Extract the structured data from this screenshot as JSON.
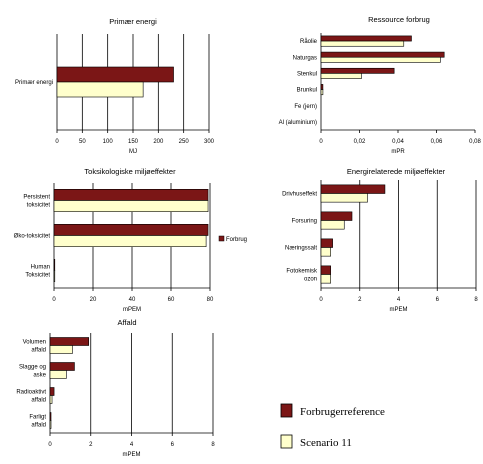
{
  "colors": {
    "ref": "#7B1616",
    "scen": "#FFFFCC",
    "edge": "#000000"
  },
  "legend": {
    "ref_label": "Forbrugerreference",
    "scen_label": "Scenario 11"
  },
  "chart_data": [
    {
      "type": "bar",
      "orientation": "horizontal",
      "title": "Primær energi",
      "categories": [
        "Primær energi"
      ],
      "series": [
        {
          "name": "Forbrugerreference",
          "values": [
            230
          ]
        },
        {
          "name": "Scenario 11",
          "values": [
            170
          ]
        }
      ],
      "xlim": [
        0,
        300
      ],
      "ticks": [
        "0",
        "50",
        "100",
        "150",
        "200",
        "250",
        "300"
      ],
      "xlabel": "MJ",
      "grid": true
    },
    {
      "type": "bar",
      "orientation": "horizontal",
      "title": "Ressource forbrug",
      "categories": [
        "Råolie",
        "Naturgas",
        "Stenkul",
        "Brunkul",
        "Fe (jern)",
        "Al (aluminium)"
      ],
      "series": [
        {
          "name": "Forbrugerreference",
          "values": [
            0.047,
            0.064,
            0.038,
            0.001,
            0,
            0
          ]
        },
        {
          "name": "Scenario 11",
          "values": [
            0.043,
            0.062,
            0.021,
            0.001,
            0,
            0
          ]
        }
      ],
      "xlim": [
        0,
        0.08
      ],
      "ticks": [
        "0",
        "0,02",
        "0,04",
        "0,06",
        "0,08"
      ],
      "xlabel": "mPR",
      "grid": false
    },
    {
      "type": "bar",
      "orientation": "horizontal",
      "title": "Toksikologiske miljøeffekter",
      "categories": [
        "Persistent toksicitet",
        "Øko-toksicitet",
        "Human Toksicitet"
      ],
      "series": [
        {
          "name": "Forbrug",
          "values": [
            79,
            79,
            0.3
          ]
        },
        {
          "name": "Scenario 11",
          "values": [
            79,
            78,
            0.3
          ]
        }
      ],
      "xlim": [
        0,
        80
      ],
      "ticks": [
        "0",
        "20",
        "40",
        "60",
        "80"
      ],
      "xlabel": "mPEM",
      "legend_entry": "Forbrug",
      "grid": true
    },
    {
      "type": "bar",
      "orientation": "horizontal",
      "title": "Energirelaterede miljøeffekter",
      "categories": [
        "Drivhuseffekt",
        "Forsuring",
        "Næringssalt",
        "Fotokemisk ozon"
      ],
      "series": [
        {
          "name": "Forbrugerreference",
          "values": [
            3.3,
            1.6,
            0.6,
            0.5
          ]
        },
        {
          "name": "Scenario 11",
          "values": [
            2.4,
            1.2,
            0.5,
            0.5
          ]
        }
      ],
      "xlim": [
        0,
        8
      ],
      "ticks": [
        "0",
        "2",
        "4",
        "6",
        "8"
      ],
      "xlabel": "mPEM",
      "grid": true
    },
    {
      "type": "bar",
      "orientation": "horizontal",
      "title": "Affald",
      "categories": [
        "Volumen affald",
        "Slagge og aske",
        "Radioaktivt affald",
        "Farligt affald"
      ],
      "series": [
        {
          "name": "Forbrugerreference",
          "values": [
            1.9,
            1.2,
            0.2,
            0.05
          ]
        },
        {
          "name": "Scenario 11",
          "values": [
            1.1,
            0.8,
            0.1,
            0.05
          ]
        }
      ],
      "xlim": [
        0,
        8
      ],
      "ticks": [
        "0",
        "2",
        "4",
        "6",
        "8"
      ],
      "xlabel": "mPEM",
      "grid": true
    }
  ]
}
